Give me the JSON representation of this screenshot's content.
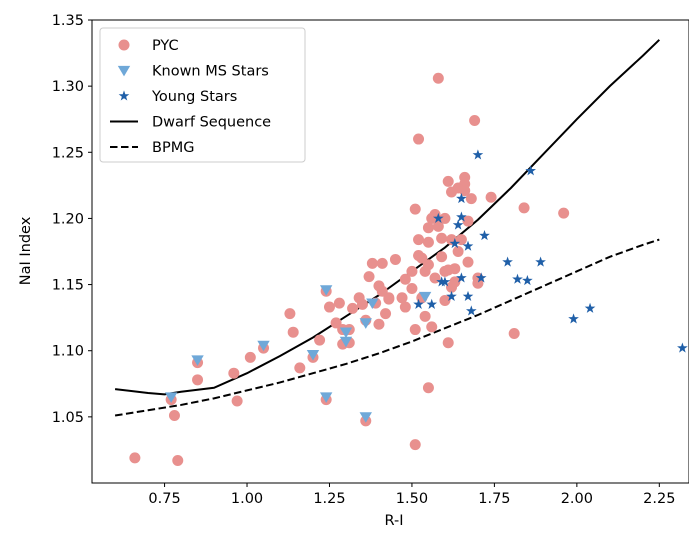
{
  "chart_data": {
    "type": "scatter",
    "xlabel": "R-I",
    "ylabel": "NaI Index",
    "xlim": [
      0.53,
      2.34
    ],
    "ylim": [
      1.0,
      1.35
    ],
    "xticks": [
      0.75,
      1.0,
      1.25,
      1.5,
      1.75,
      2.0,
      2.25
    ],
    "xtick_labels": [
      "0.75",
      "1.00",
      "1.25",
      "1.50",
      "1.75",
      "2.00",
      "2.25"
    ],
    "yticks": [
      1.05,
      1.1,
      1.15,
      1.2,
      1.25,
      1.3,
      1.35
    ],
    "ytick_labels": [
      "1.05",
      "1.10",
      "1.15",
      "1.20",
      "1.25",
      "1.30",
      "1.35"
    ],
    "legend_position": "top-left",
    "grid": false,
    "series": [
      {
        "name": "PYC",
        "marker": "circle",
        "color": "#e8908e",
        "points": [
          [
            0.66,
            1.019
          ],
          [
            0.79,
            1.017
          ],
          [
            0.78,
            1.051
          ],
          [
            0.77,
            1.063
          ],
          [
            0.85,
            1.078
          ],
          [
            0.85,
            1.091
          ],
          [
            0.97,
            1.062
          ],
          [
            0.96,
            1.083
          ],
          [
            1.01,
            1.095
          ],
          [
            1.05,
            1.102
          ],
          [
            1.13,
            1.128
          ],
          [
            1.14,
            1.114
          ],
          [
            1.16,
            1.087
          ],
          [
            1.2,
            1.095
          ],
          [
            1.22,
            1.108
          ],
          [
            1.24,
            1.063
          ],
          [
            1.24,
            1.145
          ],
          [
            1.25,
            1.133
          ],
          [
            1.27,
            1.121
          ],
          [
            1.28,
            1.136
          ],
          [
            1.29,
            1.105
          ],
          [
            1.29,
            1.116
          ],
          [
            1.31,
            1.106
          ],
          [
            1.31,
            1.116
          ],
          [
            1.32,
            1.132
          ],
          [
            1.34,
            1.14
          ],
          [
            1.35,
            1.135
          ],
          [
            1.36,
            1.047
          ],
          [
            1.36,
            1.123
          ],
          [
            1.37,
            1.156
          ],
          [
            1.38,
            1.166
          ],
          [
            1.39,
            1.136
          ],
          [
            1.4,
            1.12
          ],
          [
            1.4,
            1.149
          ],
          [
            1.41,
            1.166
          ],
          [
            1.41,
            1.145
          ],
          [
            1.42,
            1.128
          ],
          [
            1.43,
            1.139
          ],
          [
            1.43,
            1.14
          ],
          [
            1.45,
            1.169
          ],
          [
            1.47,
            1.14
          ],
          [
            1.48,
            1.154
          ],
          [
            1.48,
            1.133
          ],
          [
            1.5,
            1.147
          ],
          [
            1.5,
            1.16
          ],
          [
            1.51,
            1.116
          ],
          [
            1.51,
            1.029
          ],
          [
            1.51,
            1.207
          ],
          [
            1.52,
            1.172
          ],
          [
            1.52,
            1.184
          ],
          [
            1.52,
            1.26
          ],
          [
            1.53,
            1.17
          ],
          [
            1.53,
            1.14
          ],
          [
            1.54,
            1.126
          ],
          [
            1.54,
            1.16
          ],
          [
            1.55,
            1.165
          ],
          [
            1.55,
            1.072
          ],
          [
            1.55,
            1.182
          ],
          [
            1.55,
            1.193
          ],
          [
            1.56,
            1.118
          ],
          [
            1.56,
            1.2
          ],
          [
            1.57,
            1.155
          ],
          [
            1.57,
            1.203
          ],
          [
            1.58,
            1.306
          ],
          [
            1.58,
            1.194
          ],
          [
            1.59,
            1.185
          ],
          [
            1.59,
            1.171
          ],
          [
            1.6,
            1.16
          ],
          [
            1.6,
            1.138
          ],
          [
            1.6,
            1.2
          ],
          [
            1.61,
            1.228
          ],
          [
            1.61,
            1.161
          ],
          [
            1.61,
            1.106
          ],
          [
            1.62,
            1.22
          ],
          [
            1.62,
            1.148
          ],
          [
            1.62,
            1.184
          ],
          [
            1.63,
            1.162
          ],
          [
            1.63,
            1.152
          ],
          [
            1.64,
            1.175
          ],
          [
            1.64,
            1.223
          ],
          [
            1.65,
            1.184
          ],
          [
            1.66,
            1.231
          ],
          [
            1.66,
            1.226
          ],
          [
            1.66,
            1.221
          ],
          [
            1.67,
            1.198
          ],
          [
            1.67,
            1.167
          ],
          [
            1.68,
            1.215
          ],
          [
            1.69,
            1.274
          ],
          [
            1.7,
            1.151
          ],
          [
            1.7,
            1.155
          ],
          [
            1.74,
            1.216
          ],
          [
            1.81,
            1.113
          ],
          [
            1.84,
            1.208
          ],
          [
            1.96,
            1.204
          ]
        ]
      },
      {
        "name": "Known MS Stars",
        "marker": "triangle-down",
        "color": "#6fa8d8",
        "points": [
          [
            0.77,
            1.065
          ],
          [
            0.85,
            1.093
          ],
          [
            1.05,
            1.104
          ],
          [
            1.2,
            1.097
          ],
          [
            1.24,
            1.146
          ],
          [
            1.24,
            1.065
          ],
          [
            1.3,
            1.107
          ],
          [
            1.3,
            1.114
          ],
          [
            1.36,
            1.121
          ],
          [
            1.36,
            1.05
          ],
          [
            1.38,
            1.136
          ],
          [
            1.54,
            1.141
          ]
        ]
      },
      {
        "name": "Young Stars",
        "marker": "star",
        "color": "#1f5fa8",
        "points": [
          [
            1.52,
            1.135
          ],
          [
            1.56,
            1.135
          ],
          [
            1.58,
            1.2
          ],
          [
            1.59,
            1.152
          ],
          [
            1.6,
            1.152
          ],
          [
            1.62,
            1.141
          ],
          [
            1.63,
            1.181
          ],
          [
            1.64,
            1.195
          ],
          [
            1.65,
            1.215
          ],
          [
            1.65,
            1.201
          ],
          [
            1.65,
            1.155
          ],
          [
            1.67,
            1.141
          ],
          [
            1.67,
            1.179
          ],
          [
            1.68,
            1.13
          ],
          [
            1.7,
            1.248
          ],
          [
            1.71,
            1.155
          ],
          [
            1.72,
            1.187
          ],
          [
            1.79,
            1.167
          ],
          [
            1.82,
            1.154
          ],
          [
            1.85,
            1.153
          ],
          [
            1.86,
            1.236
          ],
          [
            1.89,
            1.167
          ],
          [
            1.99,
            1.124
          ],
          [
            2.04,
            1.132
          ],
          [
            2.32,
            1.102
          ]
        ]
      },
      {
        "name": "Dwarf Sequence",
        "marker": "line-solid",
        "color": "#000000",
        "x": [
          0.6,
          0.7,
          0.75,
          0.8,
          0.9,
          1.0,
          1.1,
          1.2,
          1.3,
          1.4,
          1.5,
          1.6,
          1.7,
          1.8,
          1.9,
          2.0,
          2.1,
          2.2,
          2.25
        ],
        "y": [
          1.071,
          1.068,
          1.067,
          1.069,
          1.072,
          1.083,
          1.096,
          1.11,
          1.126,
          1.142,
          1.16,
          1.178,
          1.199,
          1.223,
          1.249,
          1.275,
          1.3,
          1.323,
          1.335
        ]
      },
      {
        "name": "BPMG",
        "marker": "line-dashed",
        "color": "#000000",
        "x": [
          0.6,
          0.7,
          0.8,
          0.9,
          1.0,
          1.1,
          1.2,
          1.3,
          1.4,
          1.5,
          1.6,
          1.7,
          1.8,
          1.9,
          2.0,
          2.1,
          2.2,
          2.25
        ],
        "y": [
          1.051,
          1.055,
          1.059,
          1.064,
          1.07,
          1.076,
          1.083,
          1.09,
          1.098,
          1.107,
          1.117,
          1.127,
          1.138,
          1.149,
          1.16,
          1.171,
          1.18,
          1.184
        ]
      }
    ]
  }
}
